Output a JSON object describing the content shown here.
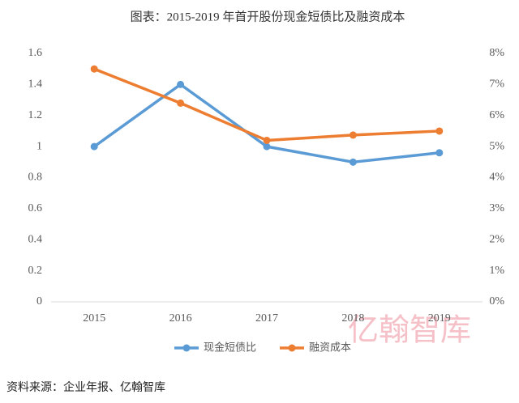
{
  "chart_data": {
    "type": "line",
    "title": "图表：2015-2019 年首开股份现金短债比及融资成本",
    "categories": [
      "2015",
      "2016",
      "2017",
      "2018",
      "2019"
    ],
    "series": [
      {
        "name": "现金短债比",
        "color": "#5b9bd5",
        "values": [
          1.0,
          1.4,
          1.0,
          0.9,
          0.96
        ]
      },
      {
        "name": "融资成本",
        "color": "#ed7d31",
        "axis": "y2",
        "values": [
          7.5,
          6.4,
          5.2,
          5.37,
          5.5
        ]
      }
    ],
    "ylim": [
      0,
      1.6
    ],
    "yticks": [
      0,
      0.2,
      0.4,
      0.6,
      0.8,
      1,
      1.2,
      1.4,
      1.6
    ],
    "y2lim": [
      0,
      8
    ],
    "y2ticks": [
      {
        "value": 0,
        "label": "0%"
      },
      {
        "value": 1,
        "label": "1%"
      },
      {
        "value": 2,
        "label": "2%"
      },
      {
        "value": 3,
        "label": "3%"
      },
      {
        "value": 4,
        "label": "4%"
      },
      {
        "value": 5,
        "label": "5%"
      },
      {
        "value": 6,
        "label": "6%"
      },
      {
        "value": 7,
        "label": "7%"
      },
      {
        "value": 8,
        "label": "8%"
      }
    ],
    "grid": false,
    "legend": "bottom"
  },
  "source": "资料来源：企业年报、亿翰智库",
  "watermark": "亿翰智库"
}
